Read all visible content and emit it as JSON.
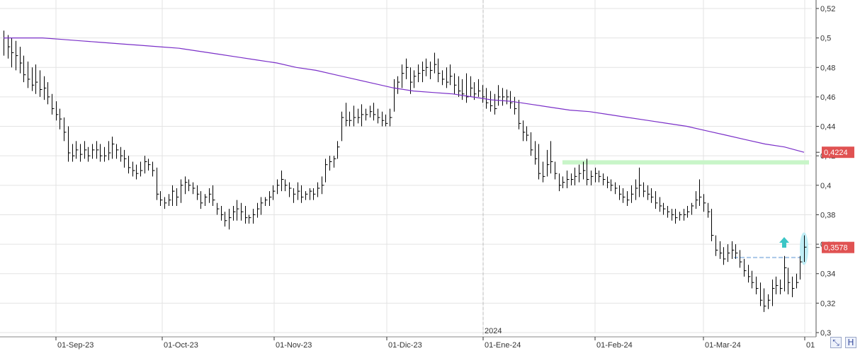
{
  "chart_data": {
    "type": "ohlc",
    "y_range": [
      0.3,
      0.52
    ],
    "y_ticks": [
      "0,52",
      "0,5",
      "0,48",
      "0,46",
      "0,44",
      "0,42",
      "0,4",
      "0,38",
      "0,36",
      "0,34",
      "0,32",
      "0,3"
    ],
    "x_ticks": [
      "01-Sep-23",
      "01-Oct-23",
      "01-Nov-23",
      "01-Dic-23",
      "01-Ene-24",
      "01-Feb-24",
      "01-Mar-24",
      "01"
    ],
    "year_marker": "2024",
    "ma_label": "0,4224",
    "last_price_label": "0,3578",
    "colors": {
      "bars": "#000000",
      "moving_average": "#7a2fc8",
      "ma_label_bg": "#e05252",
      "price_label_bg": "#e05252",
      "resistance": "#c8f5c8",
      "support": "#a9c7e8",
      "arrow": "#3cc6c6",
      "highlight": "#b9ecf5",
      "grid": "#e3e3e3"
    },
    "series": [
      {
        "values": [
          [
            0.505,
            0.488,
            0.5
          ],
          [
            0.502,
            0.486,
            0.494
          ],
          [
            0.5,
            0.48,
            0.49
          ],
          [
            0.498,
            0.478,
            0.488
          ],
          [
            0.494,
            0.476,
            0.483
          ],
          [
            0.488,
            0.47,
            0.475
          ],
          [
            0.484,
            0.466,
            0.472
          ],
          [
            0.48,
            0.464,
            0.468
          ],
          [
            0.482,
            0.462,
            0.47
          ],
          [
            0.478,
            0.46,
            0.465
          ],
          [
            0.474,
            0.458,
            0.466
          ],
          [
            0.47,
            0.455,
            0.46
          ],
          [
            0.462,
            0.448,
            0.452
          ],
          [
            0.457,
            0.444,
            0.448
          ],
          [
            0.452,
            0.438,
            0.445
          ],
          [
            0.446,
            0.43,
            0.436
          ],
          [
            0.44,
            0.416,
            0.422
          ],
          [
            0.428,
            0.416,
            0.42
          ],
          [
            0.43,
            0.418,
            0.424
          ],
          [
            0.428,
            0.416,
            0.421
          ],
          [
            0.43,
            0.418,
            0.424
          ],
          [
            0.426,
            0.416,
            0.42
          ],
          [
            0.428,
            0.418,
            0.424
          ],
          [
            0.43,
            0.418,
            0.424
          ],
          [
            0.428,
            0.416,
            0.42
          ],
          [
            0.426,
            0.416,
            0.42
          ],
          [
            0.43,
            0.417,
            0.422
          ],
          [
            0.433,
            0.418,
            0.428
          ],
          [
            0.428,
            0.418,
            0.424
          ],
          [
            0.426,
            0.416,
            0.42
          ],
          [
            0.424,
            0.412,
            0.418
          ],
          [
            0.42,
            0.408,
            0.412
          ],
          [
            0.416,
            0.406,
            0.41
          ],
          [
            0.414,
            0.404,
            0.408
          ],
          [
            0.416,
            0.406,
            0.41
          ],
          [
            0.42,
            0.408,
            0.416
          ],
          [
            0.418,
            0.41,
            0.414
          ],
          [
            0.416,
            0.406,
            0.41
          ],
          [
            0.412,
            0.39,
            0.394
          ],
          [
            0.396,
            0.386,
            0.39
          ],
          [
            0.392,
            0.384,
            0.388
          ],
          [
            0.394,
            0.386,
            0.39
          ],
          [
            0.4,
            0.386,
            0.396
          ],
          [
            0.398,
            0.386,
            0.392
          ],
          [
            0.404,
            0.388,
            0.4
          ],
          [
            0.406,
            0.394,
            0.402
          ],
          [
            0.404,
            0.396,
            0.4
          ],
          [
            0.402,
            0.394,
            0.398
          ],
          [
            0.4,
            0.39,
            0.394
          ],
          [
            0.396,
            0.384,
            0.388
          ],
          [
            0.394,
            0.386,
            0.392
          ],
          [
            0.398,
            0.388,
            0.394
          ],
          [
            0.4,
            0.386,
            0.39
          ],
          [
            0.388,
            0.38,
            0.384
          ],
          [
            0.386,
            0.376,
            0.38
          ],
          [
            0.382,
            0.372,
            0.376
          ],
          [
            0.384,
            0.37,
            0.378
          ],
          [
            0.386,
            0.376,
            0.382
          ],
          [
            0.39,
            0.376,
            0.384
          ],
          [
            0.388,
            0.376,
            0.382
          ],
          [
            0.386,
            0.374,
            0.378
          ],
          [
            0.38,
            0.374,
            0.378
          ],
          [
            0.384,
            0.374,
            0.38
          ],
          [
            0.388,
            0.378,
            0.384
          ],
          [
            0.392,
            0.38,
            0.388
          ],
          [
            0.392,
            0.386,
            0.39
          ],
          [
            0.396,
            0.386,
            0.392
          ],
          [
            0.4,
            0.39,
            0.396
          ],
          [
            0.404,
            0.394,
            0.4
          ],
          [
            0.41,
            0.396,
            0.404
          ],
          [
            0.404,
            0.396,
            0.4
          ],
          [
            0.402,
            0.392,
            0.398
          ],
          [
            0.398,
            0.388,
            0.394
          ],
          [
            0.402,
            0.39,
            0.396
          ],
          [
            0.4,
            0.388,
            0.392
          ],
          [
            0.396,
            0.39,
            0.394
          ],
          [
            0.398,
            0.39,
            0.396
          ],
          [
            0.398,
            0.39,
            0.394
          ],
          [
            0.402,
            0.392,
            0.398
          ],
          [
            0.406,
            0.394,
            0.4
          ],
          [
            0.418,
            0.402,
            0.414
          ],
          [
            0.42,
            0.41,
            0.416
          ],
          [
            0.42,
            0.412,
            0.418
          ],
          [
            0.43,
            0.418,
            0.426
          ],
          [
            0.45,
            0.43,
            0.446
          ],
          [
            0.456,
            0.44,
            0.444
          ],
          [
            0.45,
            0.44,
            0.444
          ],
          [
            0.454,
            0.44,
            0.446
          ],
          [
            0.452,
            0.442,
            0.446
          ],
          [
            0.455,
            0.44,
            0.448
          ],
          [
            0.452,
            0.444,
            0.448
          ],
          [
            0.454,
            0.446,
            0.45
          ],
          [
            0.456,
            0.444,
            0.448
          ],
          [
            0.452,
            0.442,
            0.446
          ],
          [
            0.45,
            0.44,
            0.444
          ],
          [
            0.448,
            0.44,
            0.442
          ],
          [
            0.452,
            0.44,
            0.446
          ],
          [
            0.472,
            0.45,
            0.466
          ],
          [
            0.474,
            0.462,
            0.47
          ],
          [
            0.482,
            0.466,
            0.476
          ],
          [
            0.486,
            0.472,
            0.48
          ],
          [
            0.48,
            0.462,
            0.47
          ],
          [
            0.478,
            0.466,
            0.474
          ],
          [
            0.482,
            0.47,
            0.476
          ],
          [
            0.484,
            0.47,
            0.478
          ],
          [
            0.486,
            0.474,
            0.48
          ],
          [
            0.484,
            0.472,
            0.478
          ],
          [
            0.49,
            0.476,
            0.482
          ],
          [
            0.486,
            0.47,
            0.476
          ],
          [
            0.478,
            0.468,
            0.472
          ],
          [
            0.48,
            0.466,
            0.47
          ],
          [
            0.482,
            0.468,
            0.474
          ],
          [
            0.476,
            0.462,
            0.468
          ],
          [
            0.474,
            0.46,
            0.464
          ],
          [
            0.472,
            0.458,
            0.462
          ],
          [
            0.476,
            0.456,
            0.46
          ],
          [
            0.474,
            0.46,
            0.466
          ],
          [
            0.47,
            0.458,
            0.462
          ],
          [
            0.472,
            0.46,
            0.464
          ],
          [
            0.468,
            0.456,
            0.46
          ],
          [
            0.466,
            0.452,
            0.456
          ],
          [
            0.464,
            0.45,
            0.454
          ],
          [
            0.462,
            0.448,
            0.452
          ],
          [
            0.468,
            0.454,
            0.46
          ],
          [
            0.466,
            0.454,
            0.46
          ],
          [
            0.465,
            0.455,
            0.46
          ],
          [
            0.464,
            0.452,
            0.456
          ],
          [
            0.46,
            0.448,
            0.452
          ],
          [
            0.458,
            0.438,
            0.442
          ],
          [
            0.444,
            0.43,
            0.436
          ],
          [
            0.44,
            0.43,
            0.434
          ],
          [
            0.436,
            0.42,
            0.424
          ],
          [
            0.43,
            0.414,
            0.418
          ],
          [
            0.428,
            0.404,
            0.408
          ],
          [
            0.416,
            0.402,
            0.406
          ],
          [
            0.424,
            0.406,
            0.414
          ],
          [
            0.43,
            0.408,
            0.416
          ],
          [
            0.416,
            0.404,
            0.408
          ],
          [
            0.408,
            0.396,
            0.4
          ],
          [
            0.406,
            0.398,
            0.402
          ],
          [
            0.41,
            0.398,
            0.404
          ],
          [
            0.408,
            0.4,
            0.404
          ],
          [
            0.412,
            0.4,
            0.406
          ],
          [
            0.414,
            0.402,
            0.408
          ],
          [
            0.416,
            0.404,
            0.41
          ],
          [
            0.418,
            0.4,
            0.404
          ],
          [
            0.41,
            0.4,
            0.406
          ],
          [
            0.412,
            0.402,
            0.408
          ],
          [
            0.41,
            0.402,
            0.406
          ],
          [
            0.408,
            0.4,
            0.404
          ],
          [
            0.406,
            0.398,
            0.402
          ],
          [
            0.404,
            0.396,
            0.4
          ],
          [
            0.402,
            0.394,
            0.398
          ],
          [
            0.4,
            0.39,
            0.394
          ],
          [
            0.398,
            0.388,
            0.392
          ],
          [
            0.396,
            0.386,
            0.39
          ],
          [
            0.4,
            0.388,
            0.394
          ],
          [
            0.404,
            0.39,
            0.398
          ],
          [
            0.412,
            0.392,
            0.4
          ],
          [
            0.402,
            0.392,
            0.396
          ],
          [
            0.4,
            0.39,
            0.394
          ],
          [
            0.398,
            0.388,
            0.392
          ],
          [
            0.396,
            0.384,
            0.388
          ],
          [
            0.392,
            0.382,
            0.386
          ],
          [
            0.388,
            0.38,
            0.384
          ],
          [
            0.386,
            0.378,
            0.382
          ],
          [
            0.384,
            0.376,
            0.38
          ],
          [
            0.384,
            0.374,
            0.378
          ],
          [
            0.382,
            0.376,
            0.38
          ],
          [
            0.384,
            0.376,
            0.38
          ],
          [
            0.386,
            0.378,
            0.382
          ],
          [
            0.388,
            0.38,
            0.386
          ],
          [
            0.396,
            0.384,
            0.39
          ],
          [
            0.404,
            0.386,
            0.392
          ],
          [
            0.394,
            0.382,
            0.388
          ],
          [
            0.388,
            0.378,
            0.382
          ],
          [
            0.384,
            0.362,
            0.366
          ],
          [
            0.366,
            0.352,
            0.356
          ],
          [
            0.362,
            0.35,
            0.354
          ],
          [
            0.358,
            0.346,
            0.35
          ],
          [
            0.36,
            0.348,
            0.354
          ],
          [
            0.362,
            0.35,
            0.356
          ],
          [
            0.36,
            0.35,
            0.354
          ],
          [
            0.356,
            0.344,
            0.348
          ],
          [
            0.35,
            0.338,
            0.342
          ],
          [
            0.346,
            0.334,
            0.338
          ],
          [
            0.342,
            0.33,
            0.334
          ],
          [
            0.338,
            0.326,
            0.33
          ],
          [
            0.334,
            0.318,
            0.322
          ],
          [
            0.33,
            0.314,
            0.318
          ],
          [
            0.326,
            0.316,
            0.322
          ],
          [
            0.336,
            0.318,
            0.33
          ],
          [
            0.338,
            0.326,
            0.332
          ],
          [
            0.336,
            0.326,
            0.33
          ],
          [
            0.352,
            0.328,
            0.344
          ],
          [
            0.344,
            0.326,
            0.334
          ],
          [
            0.338,
            0.324,
            0.33
          ],
          [
            0.34,
            0.33,
            0.334
          ],
          [
            0.352,
            0.336,
            0.348
          ],
          [
            0.366,
            0.348,
            0.358
          ]
        ]
      },
      {
        "values": [
          0.5,
          0.5,
          0.5,
          0.499,
          0.498,
          0.497,
          0.496,
          0.495,
          0.494,
          0.493,
          0.491,
          0.489,
          0.487,
          0.485,
          0.483,
          0.48,
          0.478,
          0.475,
          0.472,
          0.469,
          0.466,
          0.464,
          0.463,
          0.462,
          0.46,
          0.458,
          0.457,
          0.455,
          0.453,
          0.451,
          0.45,
          0.448,
          0.446,
          0.444,
          0.442,
          0.44,
          0.437,
          0.434,
          0.431,
          0.428,
          0.426,
          0.4224
        ]
      }
    ]
  }
}
